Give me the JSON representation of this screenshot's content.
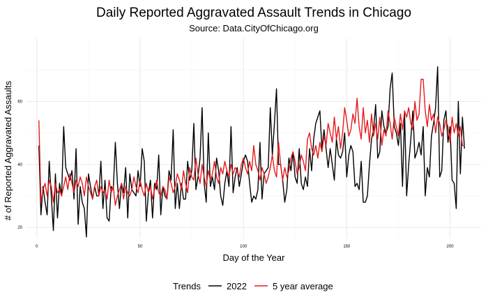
{
  "chart_data": {
    "type": "line",
    "title": "Daily Reported Aggravated Assault Trends in Chicago",
    "subtitle": "Source: Data.CityOfChicago.org",
    "xlabel": "Day of the Year",
    "ylabel": "# of Reported Aggravated Assaults",
    "xlim": [
      -5,
      215
    ],
    "ylim": [
      16.5,
      80
    ],
    "xticks": [
      0,
      50,
      100,
      150,
      200
    ],
    "yticks": [
      20,
      40,
      60
    ],
    "grid": true,
    "legend": {
      "title": "Trends",
      "position": "bottom"
    },
    "series": [
      {
        "name": "2022",
        "color": "#000000",
        "x": [
          1,
          2,
          3,
          4,
          5,
          6,
          7,
          8,
          9,
          10,
          11,
          12,
          13,
          14,
          15,
          16,
          17,
          18,
          19,
          20,
          21,
          22,
          23,
          24,
          25,
          26,
          27,
          28,
          29,
          30,
          31,
          32,
          33,
          34,
          35,
          36,
          37,
          38,
          39,
          40,
          41,
          42,
          43,
          44,
          45,
          46,
          47,
          48,
          49,
          50,
          51,
          52,
          53,
          54,
          55,
          56,
          57,
          58,
          59,
          60,
          61,
          62,
          63,
          64,
          65,
          66,
          67,
          68,
          69,
          70,
          71,
          72,
          73,
          74,
          75,
          76,
          77,
          78,
          79,
          80,
          81,
          82,
          83,
          84,
          85,
          86,
          87,
          88,
          89,
          90,
          91,
          92,
          93,
          94,
          95,
          96,
          97,
          98,
          99,
          100,
          101,
          102,
          103,
          104,
          105,
          106,
          107,
          108,
          109,
          110,
          111,
          112,
          113,
          114,
          115,
          116,
          117,
          118,
          119,
          120,
          121,
          122,
          123,
          124,
          125,
          126,
          127,
          128,
          129,
          130,
          131,
          132,
          133,
          134,
          135,
          136,
          137,
          138,
          139,
          140,
          141,
          142,
          143,
          144,
          145,
          146,
          147,
          148,
          149,
          150,
          151,
          152,
          153,
          154,
          155,
          156,
          157,
          158,
          159,
          160,
          161,
          162,
          163,
          164,
          165,
          166,
          167,
          168,
          169,
          170,
          171,
          172,
          173,
          174,
          175,
          176,
          177,
          178,
          179,
          180,
          181,
          182,
          183,
          184,
          185,
          186,
          187,
          188,
          189,
          190,
          191,
          192,
          193,
          194,
          195,
          196,
          197,
          198,
          199,
          200,
          201,
          202,
          203,
          204,
          205,
          206,
          207
        ],
        "values": [
          46,
          24,
          33,
          28,
          24,
          41,
          30,
          19,
          37,
          23,
          34,
          30,
          52,
          39,
          37,
          35,
          38,
          29,
          45,
          21,
          33,
          28,
          26,
          17,
          37,
          33,
          29,
          33,
          30,
          30,
          41,
          26,
          35,
          23,
          22,
          33,
          32,
          47,
          34,
          26,
          34,
          31,
          39,
          23,
          37,
          32,
          31,
          30,
          38,
          33,
          45,
          41,
          22,
          31,
          35,
          23,
          34,
          32,
          43,
          24,
          33,
          30,
          29,
          38,
          35,
          51,
          26,
          34,
          26,
          34,
          29,
          29,
          41,
          35,
          38,
          53,
          32,
          36,
          42,
          58,
          34,
          28,
          50,
          33,
          36,
          32,
          42,
          38,
          30,
          27,
          34,
          38,
          33,
          52,
          31,
          36,
          39,
          33,
          37,
          41,
          43,
          41,
          34,
          28,
          30,
          29,
          32,
          47,
          29,
          37,
          38,
          39,
          58,
          43,
          53,
          64,
          40,
          40,
          35,
          28,
          32,
          42,
          38,
          44,
          36,
          34,
          45,
          34,
          32,
          36,
          33,
          45,
          38,
          48,
          53,
          55,
          57,
          45,
          51,
          45,
          39,
          45,
          40,
          35,
          48,
          43,
          42,
          44,
          50,
          36,
          43,
          46,
          44,
          33,
          34,
          32,
          41,
          28,
          28,
          30,
          40,
          48,
          51,
          59,
          42,
          44,
          57,
          52,
          50,
          52,
          64,
          69,
          52,
          50,
          46,
          53,
          33,
          56,
          30,
          40,
          48,
          57,
          42,
          44,
          47,
          43,
          52,
          30,
          39,
          36,
          49,
          53,
          58,
          71,
          36,
          38,
          54,
          57,
          47,
          52,
          35,
          34,
          26,
          60,
          37,
          55,
          45
        ],
        "values_note": "estimated"
      },
      {
        "name": "5 year average",
        "color": "#e41a1c",
        "x": [
          1,
          2,
          3,
          4,
          5,
          6,
          7,
          8,
          9,
          10,
          11,
          12,
          13,
          14,
          15,
          16,
          17,
          18,
          19,
          20,
          21,
          22,
          23,
          24,
          25,
          26,
          27,
          28,
          29,
          30,
          31,
          32,
          33,
          34,
          35,
          36,
          37,
          38,
          39,
          40,
          41,
          42,
          43,
          44,
          45,
          46,
          47,
          48,
          49,
          50,
          51,
          52,
          53,
          54,
          55,
          56,
          57,
          58,
          59,
          60,
          61,
          62,
          63,
          64,
          65,
          66,
          67,
          68,
          69,
          70,
          71,
          72,
          73,
          74,
          75,
          76,
          77,
          78,
          79,
          80,
          81,
          82,
          83,
          84,
          85,
          86,
          87,
          88,
          89,
          90,
          91,
          92,
          93,
          94,
          95,
          96,
          97,
          98,
          99,
          100,
          101,
          102,
          103,
          104,
          105,
          106,
          107,
          108,
          109,
          110,
          111,
          112,
          113,
          114,
          115,
          116,
          117,
          118,
          119,
          120,
          121,
          122,
          123,
          124,
          125,
          126,
          127,
          128,
          129,
          130,
          131,
          132,
          133,
          134,
          135,
          136,
          137,
          138,
          139,
          140,
          141,
          142,
          143,
          144,
          145,
          146,
          147,
          148,
          149,
          150,
          151,
          152,
          153,
          154,
          155,
          156,
          157,
          158,
          159,
          160,
          161,
          162,
          163,
          164,
          165,
          166,
          167,
          168,
          169,
          170,
          171,
          172,
          173,
          174,
          175,
          176,
          177,
          178,
          179,
          180,
          181,
          182,
          183,
          184,
          185,
          186,
          187,
          188,
          189,
          190,
          191,
          192,
          193,
          194,
          195,
          196,
          197,
          198,
          199,
          200,
          201,
          202,
          203,
          204,
          205,
          206,
          207
        ],
        "values": [
          54,
          28,
          32,
          34,
          30,
          35,
          33,
          28,
          34,
          31,
          32,
          30,
          33,
          36,
          32,
          37,
          34,
          31,
          35,
          33,
          36,
          34,
          30,
          36,
          33,
          31,
          29,
          33,
          35,
          30,
          33,
          31,
          32,
          29,
          35,
          31,
          33,
          27,
          30,
          32,
          34,
          29,
          33,
          31,
          30,
          32,
          36,
          33,
          31,
          35,
          32,
          30,
          34,
          31,
          33,
          29,
          32,
          35,
          31,
          30,
          33,
          32,
          29,
          36,
          34,
          31,
          33,
          37,
          35,
          32,
          38,
          34,
          31,
          39,
          36,
          35,
          42,
          37,
          34,
          40,
          36,
          33,
          38,
          35,
          37,
          41,
          36,
          34,
          39,
          37,
          41,
          38,
          36,
          40,
          37,
          39,
          38,
          36,
          40,
          42,
          39,
          37,
          41,
          38,
          46,
          40,
          38,
          35,
          39,
          37,
          34,
          36,
          39,
          43,
          38,
          36,
          47,
          40,
          35,
          39,
          36,
          38,
          42,
          44,
          41,
          37,
          39,
          43,
          41,
          38,
          48,
          50,
          45,
          43,
          46,
          42,
          47,
          44,
          49,
          46,
          53,
          50,
          47,
          55,
          48,
          52,
          45,
          50,
          58,
          54,
          49,
          51,
          56,
          53,
          61,
          52,
          48,
          58,
          50,
          54,
          47,
          56,
          49,
          53,
          48,
          55,
          46,
          51,
          49,
          57,
          53,
          48,
          55,
          52,
          49,
          56,
          51,
          57,
          55,
          58,
          53,
          51,
          60,
          54,
          56,
          67,
          67,
          57,
          52,
          59,
          54,
          56,
          50,
          55,
          53,
          49,
          51,
          54,
          52,
          47,
          55,
          50,
          53,
          49,
          52,
          46,
          46
        ],
        "values_note": "estimated"
      }
    ]
  }
}
